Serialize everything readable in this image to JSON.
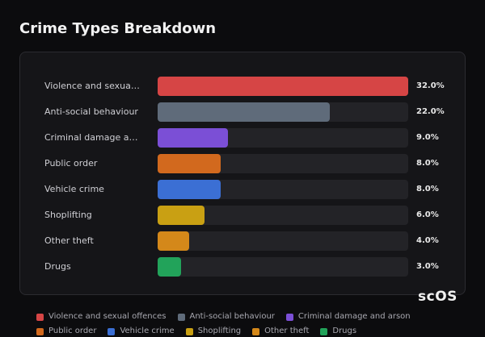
{
  "chart_data": {
    "type": "bar",
    "orientation": "horizontal",
    "title": "Crime Types Breakdown",
    "categories": [
      "Violence and sexual offences",
      "Anti-social behaviour",
      "Criminal damage and arson",
      "Public order",
      "Vehicle crime",
      "Shoplifting",
      "Other theft",
      "Drugs"
    ],
    "values": [
      32,
      22,
      9,
      8,
      8,
      6,
      4,
      3
    ],
    "value_labels": [
      "32.0%",
      "22.0%",
      "9.0%",
      "8.0%",
      "8.0%",
      "6.0%",
      "4.0%",
      "3.0%"
    ],
    "colors": [
      "#d64545",
      "#5f6b7a",
      "#7b4fd6",
      "#d2691e",
      "#3b6fd4",
      "#c9a013",
      "#d4881a",
      "#22a35a"
    ],
    "legend": true,
    "watermark": "scOS"
  }
}
